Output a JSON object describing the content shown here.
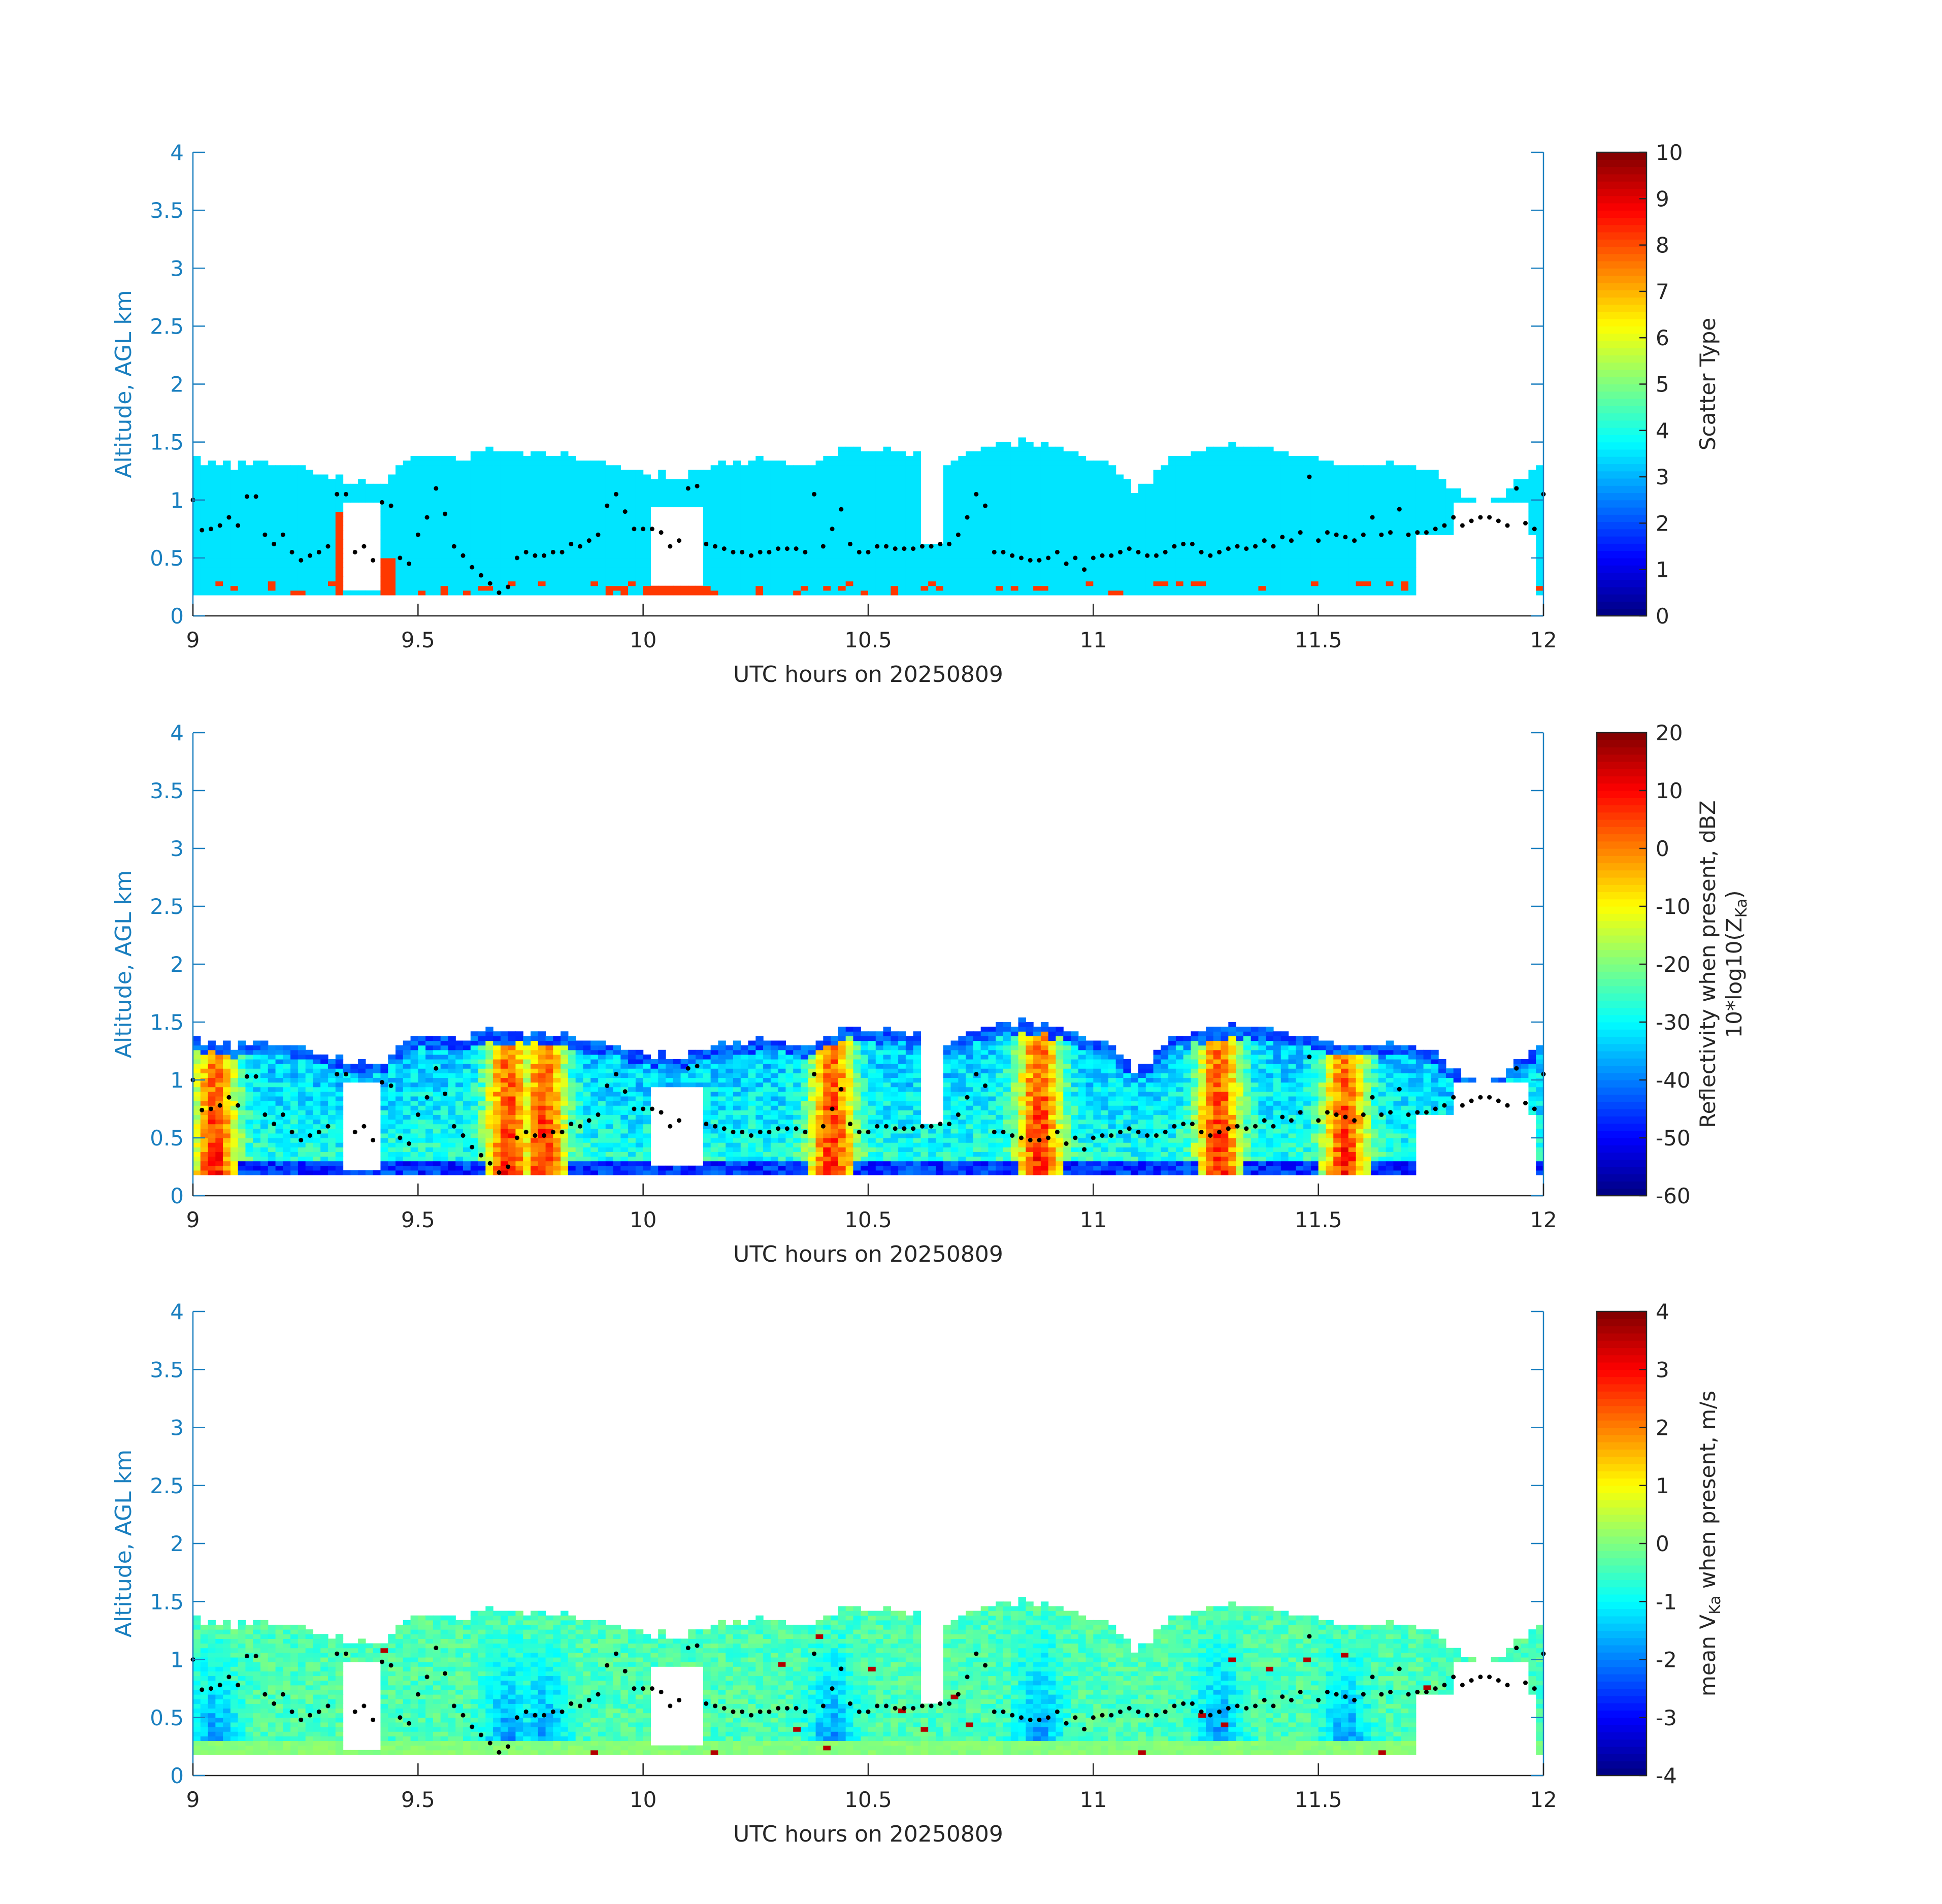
{
  "figure": {
    "background": "#ffffff",
    "y_axis_color": "#1a7fbf",
    "text_color": "#262626"
  },
  "chart_data": [
    {
      "type": "heatmap",
      "xlabel": "UTC hours on 20250809",
      "ylabel": "Altitude, AGL km",
      "xlim": [
        9,
        12
      ],
      "ylim": [
        0,
        4
      ],
      "xticks": [
        "9",
        "9.5",
        "10",
        "10.5",
        "11",
        "11.5",
        "12"
      ],
      "yticks": [
        "0",
        "0.5",
        "1",
        "1.5",
        "2",
        "2.5",
        "3",
        "3.5",
        "4"
      ],
      "colorbar": {
        "label": "Scatter Type",
        "range": [
          0,
          10
        ],
        "ticks": [
          "0",
          "1",
          "2",
          "3",
          "4",
          "5",
          "6",
          "7",
          "8",
          "9",
          "10"
        ]
      },
      "field": "scatter_type",
      "dominant_value": 3.5,
      "secondary_value": 8.2
    },
    {
      "type": "heatmap",
      "xlabel": "UTC hours on 20250809",
      "ylabel": "Altitude, AGL km",
      "xlim": [
        9,
        12
      ],
      "ylim": [
        0,
        4
      ],
      "xticks": [
        "9",
        "9.5",
        "10",
        "10.5",
        "11",
        "11.5",
        "12"
      ],
      "yticks": [
        "0",
        "0.5",
        "1",
        "1.5",
        "2",
        "2.5",
        "3",
        "3.5",
        "4"
      ],
      "colorbar": {
        "label": "Reflectivity when present, dBZ",
        "label2_prefix": "10*log10(Z",
        "label2_sub": "Ka",
        "label2_suffix": ")",
        "range": [
          -60,
          20
        ],
        "ticks": [
          "-60",
          "-50",
          "-40",
          "-30",
          "-20",
          "-10",
          "0",
          "10",
          "20"
        ]
      },
      "field": "reflectivity_dBZ",
      "strong_cores_hours": [
        9.05,
        9.7,
        9.78,
        10.42,
        10.88,
        11.28,
        11.56
      ]
    },
    {
      "type": "heatmap",
      "xlabel": "UTC hours on 20250809",
      "ylabel": "Altitude, AGL km",
      "xlim": [
        9,
        12
      ],
      "ylim": [
        0,
        4
      ],
      "xticks": [
        "9",
        "9.5",
        "10",
        "10.5",
        "11",
        "11.5",
        "12"
      ],
      "yticks": [
        "0",
        "0.5",
        "1",
        "1.5",
        "2",
        "2.5",
        "3",
        "3.5",
        "4"
      ],
      "colorbar": {
        "label_prefix": "mean V",
        "label_sub": "Ka",
        "label_suffix": " when present, m/s",
        "range": [
          -4,
          4
        ],
        "ticks": [
          "-4",
          "-3",
          "-2",
          "-1",
          "0",
          "1",
          "2",
          "3",
          "4"
        ]
      },
      "field": "mean_velocity_ms"
    }
  ],
  "echo_top_km": [
    [
      9.0,
      1.33
    ],
    [
      9.06,
      1.3
    ],
    [
      9.12,
      1.27
    ],
    [
      9.18,
      1.3
    ],
    [
      9.24,
      1.25
    ],
    [
      9.3,
      1.2
    ],
    [
      9.36,
      1.12
    ],
    [
      9.42,
      1.1
    ],
    [
      9.48,
      1.35
    ],
    [
      9.54,
      1.38
    ],
    [
      9.6,
      1.33
    ],
    [
      9.66,
      1.42
    ],
    [
      9.72,
      1.38
    ],
    [
      9.78,
      1.38
    ],
    [
      9.84,
      1.35
    ],
    [
      9.9,
      1.3
    ],
    [
      9.96,
      1.25
    ],
    [
      10.02,
      1.2
    ],
    [
      10.08,
      1.18
    ],
    [
      10.14,
      1.28
    ],
    [
      10.2,
      1.32
    ],
    [
      10.26,
      1.32
    ],
    [
      10.32,
      1.3
    ],
    [
      10.38,
      1.28
    ],
    [
      10.44,
      1.42
    ],
    [
      10.5,
      1.42
    ],
    [
      10.56,
      1.4
    ],
    [
      10.62,
      1.35
    ],
    [
      10.68,
      1.3
    ],
    [
      10.74,
      1.42
    ],
    [
      10.8,
      1.45
    ],
    [
      10.86,
      1.5
    ],
    [
      10.92,
      1.42
    ],
    [
      10.98,
      1.35
    ],
    [
      11.04,
      1.28
    ],
    [
      11.1,
      1.05
    ],
    [
      11.16,
      1.3
    ],
    [
      11.22,
      1.4
    ],
    [
      11.28,
      1.45
    ],
    [
      11.34,
      1.45
    ],
    [
      11.4,
      1.42
    ],
    [
      11.46,
      1.38
    ],
    [
      11.52,
      1.3
    ],
    [
      11.58,
      1.3
    ],
    [
      11.64,
      1.28
    ],
    [
      11.7,
      1.28
    ],
    [
      11.76,
      1.25
    ],
    [
      11.82,
      1.0
    ],
    [
      11.88,
      0.95
    ],
    [
      11.94,
      1.15
    ],
    [
      12.0,
      1.3
    ]
  ],
  "echo_base_km": 0.18,
  "dots_km": [
    [
      9.0,
      1.0
    ],
    [
      9.02,
      0.74
    ],
    [
      9.04,
      0.75
    ],
    [
      9.06,
      0.78
    ],
    [
      9.08,
      0.85
    ],
    [
      9.1,
      0.78
    ],
    [
      9.12,
      1.03
    ],
    [
      9.14,
      1.03
    ],
    [
      9.16,
      0.7
    ],
    [
      9.18,
      0.62
    ],
    [
      9.2,
      0.7
    ],
    [
      9.22,
      0.55
    ],
    [
      9.24,
      0.48
    ],
    [
      9.26,
      0.52
    ],
    [
      9.28,
      0.55
    ],
    [
      9.3,
      0.6
    ],
    [
      9.32,
      1.05
    ],
    [
      9.34,
      1.05
    ],
    [
      9.36,
      0.55
    ],
    [
      9.38,
      0.6
    ],
    [
      9.4,
      0.48
    ],
    [
      9.42,
      0.98
    ],
    [
      9.44,
      0.95
    ],
    [
      9.46,
      0.5
    ],
    [
      9.48,
      0.45
    ],
    [
      9.5,
      0.7
    ],
    [
      9.52,
      0.85
    ],
    [
      9.54,
      1.1
    ],
    [
      9.56,
      0.88
    ],
    [
      9.58,
      0.6
    ],
    [
      9.6,
      0.52
    ],
    [
      9.62,
      0.42
    ],
    [
      9.64,
      0.35
    ],
    [
      9.66,
      0.28
    ],
    [
      9.68,
      0.2
    ],
    [
      9.7,
      0.25
    ],
    [
      9.72,
      0.5
    ],
    [
      9.74,
      0.55
    ],
    [
      9.76,
      0.52
    ],
    [
      9.78,
      0.52
    ],
    [
      9.8,
      0.55
    ],
    [
      9.82,
      0.55
    ],
    [
      9.84,
      0.62
    ],
    [
      9.86,
      0.6
    ],
    [
      9.88,
      0.65
    ],
    [
      9.9,
      0.7
    ],
    [
      9.92,
      0.95
    ],
    [
      9.94,
      1.05
    ],
    [
      9.96,
      0.9
    ],
    [
      9.98,
      0.75
    ],
    [
      10.0,
      0.75
    ],
    [
      10.02,
      0.75
    ],
    [
      10.04,
      0.72
    ],
    [
      10.06,
      0.6
    ],
    [
      10.08,
      0.65
    ],
    [
      10.1,
      1.1
    ],
    [
      10.12,
      1.12
    ],
    [
      10.14,
      0.62
    ],
    [
      10.16,
      0.6
    ],
    [
      10.18,
      0.58
    ],
    [
      10.2,
      0.55
    ],
    [
      10.22,
      0.55
    ],
    [
      10.24,
      0.52
    ],
    [
      10.26,
      0.55
    ],
    [
      10.28,
      0.55
    ],
    [
      10.3,
      0.58
    ],
    [
      10.32,
      0.58
    ],
    [
      10.34,
      0.58
    ],
    [
      10.36,
      0.55
    ],
    [
      10.38,
      1.05
    ],
    [
      10.4,
      0.6
    ],
    [
      10.42,
      0.75
    ],
    [
      10.44,
      0.92
    ],
    [
      10.46,
      0.62
    ],
    [
      10.48,
      0.55
    ],
    [
      10.5,
      0.55
    ],
    [
      10.52,
      0.6
    ],
    [
      10.54,
      0.6
    ],
    [
      10.56,
      0.58
    ],
    [
      10.58,
      0.58
    ],
    [
      10.6,
      0.58
    ],
    [
      10.62,
      0.6
    ],
    [
      10.64,
      0.6
    ],
    [
      10.66,
      0.62
    ],
    [
      10.68,
      0.62
    ],
    [
      10.7,
      0.7
    ],
    [
      10.72,
      0.85
    ],
    [
      10.74,
      1.05
    ],
    [
      10.76,
      0.95
    ],
    [
      10.78,
      0.55
    ],
    [
      10.8,
      0.55
    ],
    [
      10.82,
      0.52
    ],
    [
      10.84,
      0.5
    ],
    [
      10.86,
      0.48
    ],
    [
      10.88,
      0.48
    ],
    [
      10.9,
      0.5
    ],
    [
      10.92,
      0.55
    ],
    [
      10.94,
      0.45
    ],
    [
      10.96,
      0.5
    ],
    [
      10.98,
      0.4
    ],
    [
      11.0,
      0.5
    ],
    [
      11.02,
      0.52
    ],
    [
      11.04,
      0.52
    ],
    [
      11.06,
      0.55
    ],
    [
      11.08,
      0.58
    ],
    [
      11.1,
      0.55
    ],
    [
      11.12,
      0.52
    ],
    [
      11.14,
      0.52
    ],
    [
      11.16,
      0.55
    ],
    [
      11.18,
      0.6
    ],
    [
      11.2,
      0.62
    ],
    [
      11.22,
      0.62
    ],
    [
      11.24,
      0.55
    ],
    [
      11.26,
      0.52
    ],
    [
      11.28,
      0.55
    ],
    [
      11.3,
      0.58
    ],
    [
      11.32,
      0.6
    ],
    [
      11.34,
      0.58
    ],
    [
      11.36,
      0.6
    ],
    [
      11.38,
      0.65
    ],
    [
      11.4,
      0.6
    ],
    [
      11.42,
      0.68
    ],
    [
      11.44,
      0.65
    ],
    [
      11.46,
      0.72
    ],
    [
      11.48,
      1.2
    ],
    [
      11.5,
      0.65
    ],
    [
      11.52,
      0.72
    ],
    [
      11.54,
      0.7
    ],
    [
      11.56,
      0.68
    ],
    [
      11.58,
      0.65
    ],
    [
      11.6,
      0.7
    ],
    [
      11.62,
      0.85
    ],
    [
      11.64,
      0.7
    ],
    [
      11.66,
      0.72
    ],
    [
      11.68,
      0.92
    ],
    [
      11.7,
      0.7
    ],
    [
      11.72,
      0.72
    ],
    [
      11.74,
      0.72
    ],
    [
      11.76,
      0.75
    ],
    [
      11.78,
      0.78
    ],
    [
      11.8,
      0.85
    ],
    [
      11.82,
      0.78
    ],
    [
      11.84,
      0.82
    ],
    [
      11.86,
      0.85
    ],
    [
      11.88,
      0.85
    ],
    [
      11.9,
      0.82
    ],
    [
      11.92,
      0.78
    ],
    [
      11.94,
      1.1
    ],
    [
      11.96,
      0.8
    ],
    [
      11.98,
      0.75
    ],
    [
      12.0,
      1.05
    ]
  ]
}
